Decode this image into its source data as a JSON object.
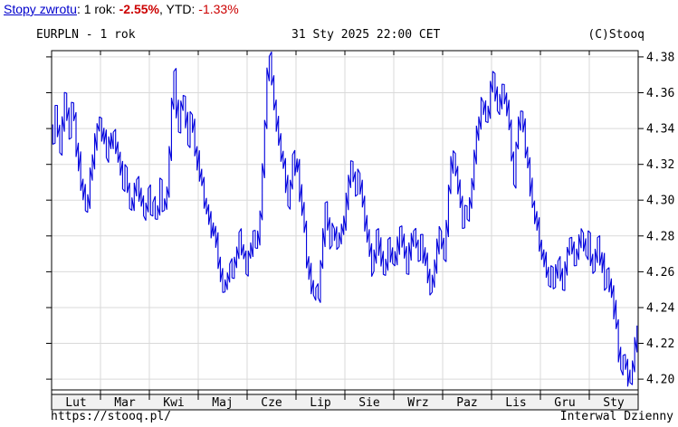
{
  "returns_bar": {
    "link_label": "Stopy zwrotu",
    "sep1": ": 1 rok: ",
    "one_year_value": "-2.55%",
    "sep2": ", YTD: ",
    "ytd_value": "-1.33%"
  },
  "header": {
    "title": "EURPLN - 1 rok",
    "timestamp": "31 Sty 2025 22:00 CET",
    "copyright": "(C)Stooq"
  },
  "footer": {
    "url": "https://stooq.pl/",
    "interval_label": "Interwal Dzienny"
  },
  "colors": {
    "line": "#0101dd",
    "grid": "#d9d9d9",
    "frame": "#000000",
    "band_bg": "#f1f1f1",
    "link": "#0000cc",
    "negative": "#cc0000"
  },
  "chart_data": {
    "type": "line",
    "style": "daily high-low bar line (stooq)",
    "title": "EURPLN - 1 rok",
    "legend_position": "none",
    "grid": true,
    "x_months": [
      "Lut",
      "Mar",
      "Kwi",
      "Maj",
      "Cze",
      "Lip",
      "Sie",
      "Wrz",
      "Paz",
      "Lis",
      "Gru",
      "Sty"
    ],
    "y_ticks": [
      4.38,
      4.36,
      4.34,
      4.32,
      4.3,
      4.28,
      4.26,
      4.24,
      4.22,
      4.2
    ],
    "ylim": [
      4.194,
      4.3835
    ],
    "series_name": "EURPLN",
    "daily_trend_note": "Estimated EURPLN close trend, one value per trading day Feb 2024 - Jan 2025 (21/month); daily high-low bars synthesized around this path. Key features read off the plot: Feb high ~4.356, mid-Feb dip ~4.296, Mar slide to ~4.293, mid-Apr spike to ~4.37, mid-May low ~4.25, mid-Jun peak ~4.381 (chart max), mid-Jul low ~4.247, early-Aug bump ~4.33, Sep chop 4.25-4.28, Oct rally, early-Nov peak ~4.375, Dec chop 4.25-4.28, late-Jan plunge to ~4.197 (chart min), final uptick ~4.222.",
    "daily_trend": [
      4.337,
      4.35,
      4.34,
      4.332,
      4.345,
      4.356,
      4.348,
      4.338,
      4.35,
      4.343,
      4.33,
      4.322,
      4.31,
      4.302,
      4.296,
      4.3,
      4.312,
      4.322,
      4.332,
      4.34,
      4.344,
      4.34,
      4.334,
      4.328,
      4.334,
      4.33,
      4.336,
      4.33,
      4.324,
      4.318,
      4.312,
      4.315,
      4.308,
      4.302,
      4.298,
      4.305,
      4.31,
      4.303,
      4.296,
      4.293,
      4.298,
      4.302,
      4.296,
      4.3,
      4.293,
      4.298,
      4.306,
      4.3,
      4.295,
      4.308,
      4.325,
      4.352,
      4.368,
      4.35,
      4.34,
      4.351,
      4.356,
      4.345,
      4.337,
      4.343,
      4.338,
      4.33,
      4.325,
      4.318,
      4.31,
      4.302,
      4.295,
      4.288,
      4.28,
      4.284,
      4.276,
      4.268,
      4.26,
      4.254,
      4.25,
      4.256,
      4.262,
      4.256,
      4.266,
      4.274,
      4.28,
      4.274,
      4.267,
      4.262,
      4.268,
      4.276,
      4.282,
      4.273,
      4.278,
      4.292,
      4.315,
      4.345,
      4.372,
      4.379,
      4.366,
      4.352,
      4.342,
      4.334,
      4.328,
      4.32,
      4.31,
      4.303,
      4.31,
      4.32,
      4.322,
      4.315,
      4.305,
      4.295,
      4.283,
      4.27,
      4.258,
      4.25,
      4.247,
      4.252,
      4.248,
      4.262,
      4.28,
      4.293,
      4.286,
      4.278,
      4.284,
      4.28,
      4.274,
      4.28,
      4.286,
      4.29,
      4.297,
      4.308,
      4.322,
      4.315,
      4.308,
      4.315,
      4.308,
      4.298,
      4.288,
      4.278,
      4.27,
      4.264,
      4.271,
      4.278,
      4.272,
      4.266,
      4.26,
      4.268,
      4.275,
      4.27,
      4.264,
      4.27,
      4.276,
      4.282,
      4.276,
      4.268,
      4.262,
      4.268,
      4.275,
      4.28,
      4.274,
      4.268,
      4.274,
      4.27,
      4.264,
      4.257,
      4.252,
      4.256,
      4.264,
      4.274,
      4.281,
      4.275,
      4.27,
      4.285,
      4.305,
      4.322,
      4.325,
      4.315,
      4.305,
      4.296,
      4.29,
      4.292,
      4.296,
      4.3,
      4.31,
      4.322,
      4.334,
      4.344,
      4.35,
      4.352,
      4.344,
      4.352,
      4.36,
      4.37,
      4.36,
      4.35,
      4.357,
      4.364,
      4.357,
      4.35,
      4.34,
      4.325,
      4.312,
      4.33,
      4.34,
      4.346,
      4.34,
      4.33,
      4.32,
      4.31,
      4.3,
      4.292,
      4.285,
      4.278,
      4.272,
      4.266,
      4.26,
      4.255,
      4.26,
      4.253,
      4.259,
      4.266,
      4.259,
      4.253,
      4.262,
      4.27,
      4.276,
      4.27,
      4.263,
      4.27,
      4.277,
      4.282,
      4.275,
      4.269,
      4.276,
      4.27,
      4.264,
      4.27,
      4.276,
      4.27,
      4.262,
      4.256,
      4.26,
      4.252,
      4.248,
      4.24,
      4.228,
      4.215,
      4.208,
      4.212,
      4.205,
      4.199,
      4.203,
      4.21,
      4.218,
      4.222
    ],
    "noise": {
      "jitter": 0.0033,
      "range_min": 0.0018,
      "range_max": 0.0058,
      "seed": 123456789
    }
  }
}
